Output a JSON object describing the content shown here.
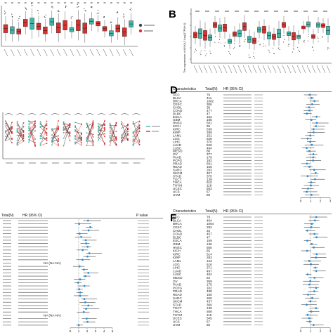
{
  "panels": {
    "B": {
      "letter": "B",
      "ylabel": "The expression of ANXA2 Log2(TPM+1)"
    },
    "D": {
      "letter": "D",
      "headers": [
        "Characteristics",
        "Total(N)",
        "HR (95% CI)"
      ],
      "cancers": [
        "ACC",
        "BLCA",
        "BRCA",
        "CESC",
        "CHOL",
        "COAD",
        "DLBC",
        "ESCA",
        "GBM",
        "HNSC",
        "KICH",
        "KIRC",
        "KIRP",
        "LAML",
        "LGG",
        "LIHC",
        "LUAD",
        "LUSC",
        "MESO",
        "OV",
        "PAAD",
        "PCPG",
        "PRAD",
        "READ",
        "SARC",
        "SKCM",
        "STAD",
        "TGCT",
        "THCA",
        "THYM",
        "UCEC",
        "UCS",
        "UVM"
      ],
      "totals": [
        "79",
        "411",
        "1082",
        "306",
        "35",
        "477",
        "47",
        "162",
        "168",
        "501",
        "65",
        "539",
        "289",
        "151",
        "528",
        "370",
        "526",
        "494",
        "86",
        "377",
        "179",
        "182",
        "501",
        "166",
        "263",
        "457",
        "375",
        "139",
        "510",
        "119",
        "553",
        "57",
        "80"
      ],
      "xticks": [
        "0",
        "1",
        "2",
        "3"
      ]
    },
    "E": {
      "headers": [
        "Total(N)",
        "HR (95% CI)",
        "P value"
      ],
      "na_text": "NA (NA-NA)",
      "xticks": [
        "0",
        "1",
        "2",
        "3",
        "4",
        "5"
      ]
    },
    "F": {
      "letter": "F",
      "headers": [
        "Characteristics",
        "Total(N)",
        "HR (95% CI)"
      ],
      "cancers": [
        "ACC",
        "BLCA",
        "BRCA",
        "CESC",
        "CHOL",
        "COAD",
        "DLBC",
        "ESCA",
        "GBM",
        "HNSC",
        "KICH",
        "KIRC",
        "KIRP",
        "LAML",
        "LGG",
        "LIHC",
        "LUAD",
        "LUSC",
        "MESO",
        "OV",
        "PAAD",
        "PCPG",
        "PRAD",
        "READ",
        "SARC",
        "SKCM",
        "STAD",
        "TGCT",
        "THCA",
        "THYM",
        "UCEC",
        "UCS",
        "UVM"
      ],
      "totals": [
        "79",
        "404",
        "1064",
        "292",
        "34",
        "457",
        "47",
        "159",
        "136",
        "505",
        "65",
        "514",
        "283",
        "123",
        "516",
        "371",
        "497",
        "462",
        "84",
        "359",
        "175",
        "182",
        "498",
        "155",
        "260",
        "437",
        "369",
        "139",
        "508",
        "119",
        "545",
        "57",
        "80"
      ],
      "xticks": [
        "0",
        "1",
        "2",
        "3"
      ]
    }
  },
  "colors": {
    "normal": "#3fb8a8",
    "tumor": "#d9302e",
    "ci": "#2a8fd6"
  }
}
